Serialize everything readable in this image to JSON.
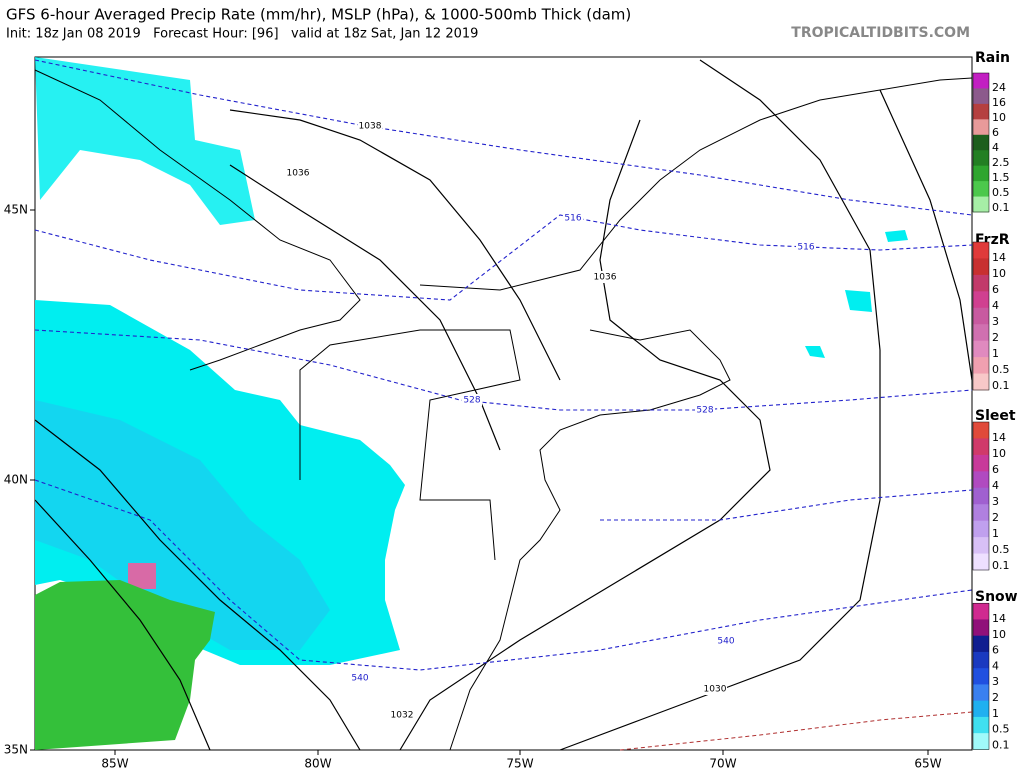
{
  "header": {
    "title": "GFS 6-hour Averaged Precip Rate (mm/hr), MSLP (hPa), & 1000-500mb Thick (dam)",
    "subtitle": "Init: 18z Jan 08 2019   Forecast Hour: [96]   valid at 18z Sat, Jan 12 2019",
    "credit": "TROPICALTIDBITS.COM"
  },
  "map": {
    "lat_labels": [
      "45N",
      "40N",
      "35N"
    ],
    "lon_labels": [
      "85W",
      "80W",
      "75W",
      "70W",
      "65W"
    ],
    "isobar_labels": [
      "1038",
      "1036",
      "1036",
      "1032",
      "1030"
    ],
    "thickness_labels": [
      "516",
      "516",
      "528",
      "528",
      "540",
      "540"
    ]
  },
  "legends": [
    {
      "title": "Rain",
      "labels": [
        "24",
        "16",
        "10",
        "6",
        "4",
        "2.5",
        "1.5",
        "0.5",
        "0.1"
      ],
      "colors": [
        "#c21fc2",
        "#8c5a8c",
        "#b54040",
        "#e89a9a",
        "#1d5e1d",
        "#237f23",
        "#2fa52f",
        "#4cc84c",
        "#a6eea6"
      ]
    },
    {
      "title": "FrzR",
      "labels": [
        "14",
        "10",
        "6",
        "4",
        "3",
        "2",
        "1",
        "0.5",
        "0.1"
      ],
      "colors": [
        "#e03a3a",
        "#c83030",
        "#c23a6a",
        "#d04090",
        "#c85aa0",
        "#d070b0",
        "#e08abf",
        "#f0a0b0",
        "#f8c8c8"
      ]
    },
    {
      "title": "Sleet",
      "labels": [
        "14",
        "10",
        "6",
        "4",
        "3",
        "2",
        "1",
        "0.5",
        "0.1"
      ],
      "colors": [
        "#e04a3a",
        "#d03a6a",
        "#c83a9a",
        "#b04ac0",
        "#a060d0",
        "#b080e0",
        "#c0a0ee",
        "#d8c0f6",
        "#eee0ff"
      ]
    },
    {
      "title": "Snow",
      "labels": [
        "14",
        "10",
        "6",
        "4",
        "3",
        "2",
        "1",
        "0.5",
        "0.1"
      ],
      "colors": [
        "#d02a90",
        "#90107a",
        "#101e90",
        "#1a3ac0",
        "#2050e0",
        "#3a80f0",
        "#20b0f0",
        "#40e0f0",
        "#a0fafa"
      ]
    }
  ]
}
